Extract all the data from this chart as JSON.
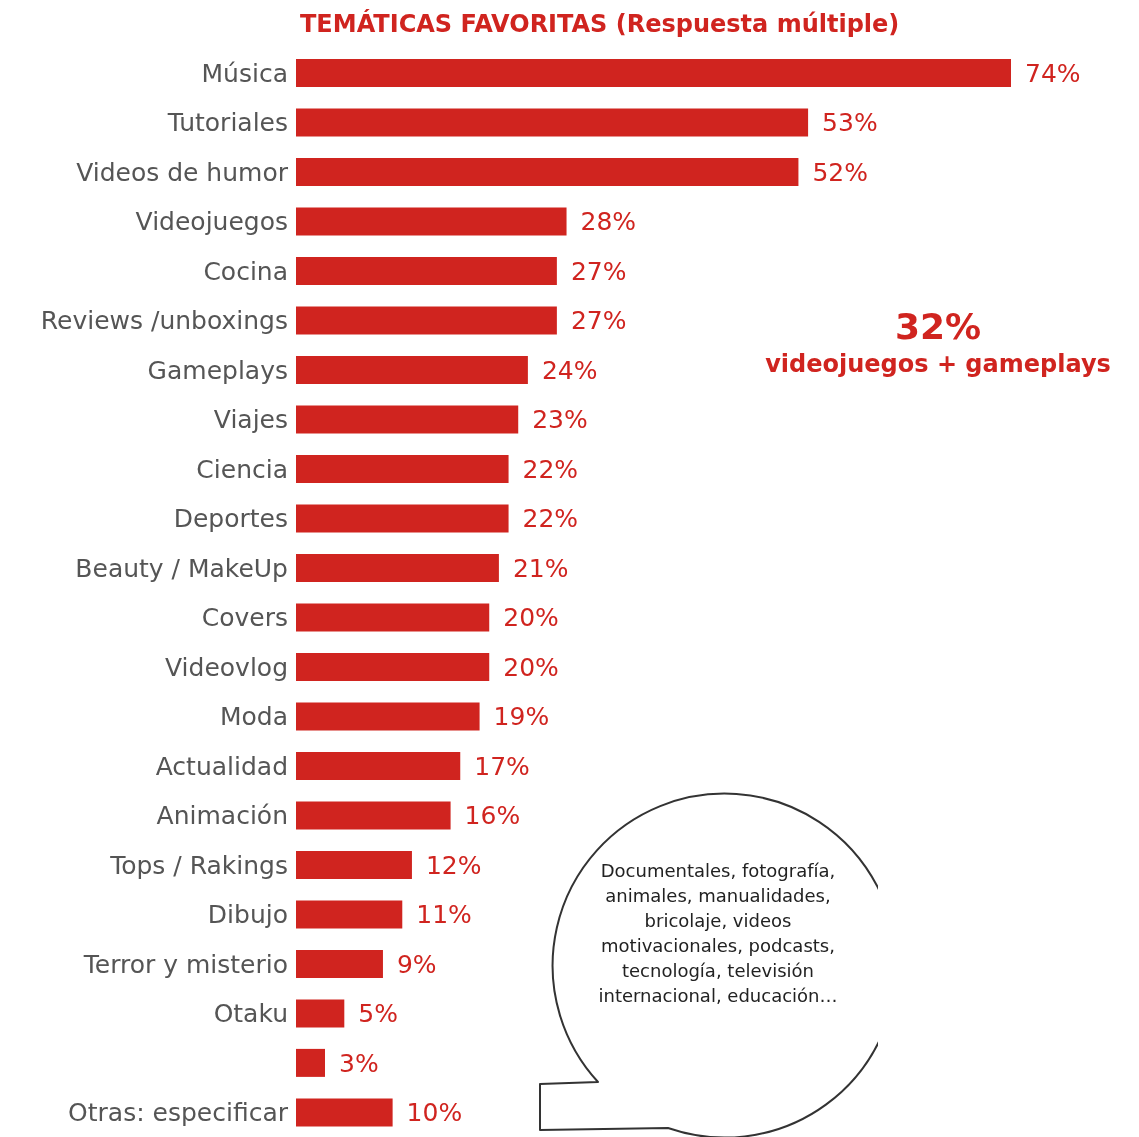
{
  "chart_data": {
    "type": "bar",
    "orientation": "horizontal",
    "title": "TEMÁTICAS FAVORITAS (Respuesta múltiple)",
    "categories": [
      "Música",
      "Tutoriales",
      "Videos de humor",
      "Videojuegos",
      "Cocina",
      "Reviews /unboxings",
      "Gameplays",
      "Viajes",
      "Ciencia",
      "Deportes",
      "Beauty / MakeUp",
      "Covers",
      "Videovlog",
      "Moda",
      "Actualidad",
      "Animación",
      "Tops / Rakings",
      "Dibujo",
      "Terror y misterio",
      "Otaku",
      null,
      "Otras: especificar"
    ],
    "values": [
      74,
      53,
      52,
      28,
      27,
      27,
      24,
      23,
      22,
      22,
      21,
      20,
      20,
      19,
      17,
      16,
      12,
      11,
      9,
      5,
      3,
      10
    ],
    "value_labels": [
      "74%",
      "53%",
      "52%",
      "28%",
      "27%",
      "27%",
      "24%",
      "23%",
      "22%",
      "22%",
      "21%",
      "20%",
      "20%",
      "19%",
      "17%",
      "16%",
      "12%",
      "11%",
      "9%",
      "5%",
      "3%",
      "10%"
    ],
    "color": "#d0241f",
    "tick_labels": "y",
    "annotations": [
      "32%",
      "videojuegos + gameplays",
      "Documentales, fotografía, animales, manualidades, bricolaje, videos motivacionales, podcasts, tecnología, televisión internacional, educación…"
    ]
  }
}
